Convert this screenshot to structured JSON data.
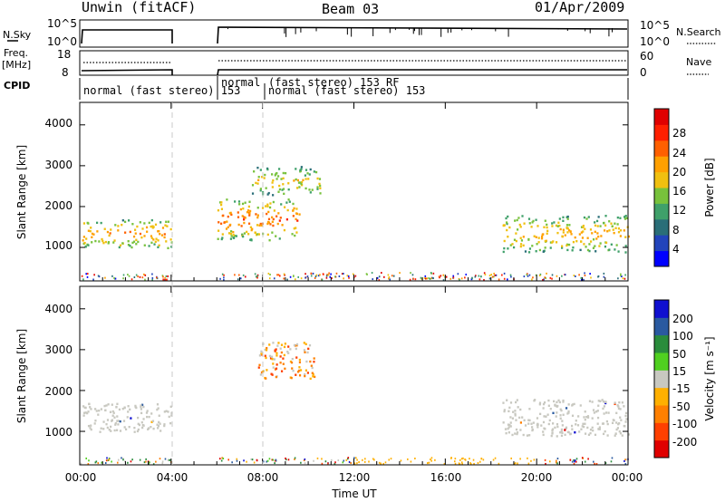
{
  "header": {
    "station": "Unwin (fitACF)",
    "beam": "Beam 03",
    "date": "01/Apr/2009"
  },
  "panels": {
    "nsky": {
      "left_label": "N.Sky",
      "right_label": "N.Search",
      "left_ticks": [
        "10^5",
        "10^0"
      ],
      "right_ticks": [
        "10^5",
        "10^0"
      ]
    },
    "freq": {
      "left_label_top": "Freq.",
      "left_label_bottom": "[MHz]",
      "right_label": "Nave",
      "left_ticks": [
        "18",
        "8"
      ],
      "right_ticks": [
        "60",
        "0"
      ]
    },
    "cpid": {
      "label": "CPID",
      "segments": [
        "normal (fast stereo) 153",
        "normal",
        "(fast stereo)  153 RF",
        "normal (fast stereo) 153"
      ]
    }
  },
  "colors": {
    "power": [
      "#0000ff",
      "#2244bb",
      "#2a6e78",
      "#3fa06a",
      "#78c23c",
      "#f0c010",
      "#ffa000",
      "#ff6000",
      "#ff2000",
      "#e00000"
    ],
    "velocity": [
      "#e00000",
      "#ff4000",
      "#ff8000",
      "#ffb000",
      "#c8c8c0",
      "#50d020",
      "#2a8c3c",
      "#2a5aa0",
      "#1010d0"
    ],
    "scatter_gray": "#c8c8c0"
  },
  "chart_data": [
    {
      "type": "heatmap",
      "name": "Power",
      "ylabel": "Slant Range [km]",
      "yticks": [
        "1000",
        "2000",
        "3000",
        "4000"
      ],
      "ylim": [
        180,
        4550
      ],
      "colorbar": {
        "label": "Power [dB]",
        "ticks": [
          "4",
          "8",
          "12",
          "16",
          "20",
          "24",
          "28"
        ],
        "range": [
          0,
          30
        ]
      },
      "bands": [
        {
          "t0": 0.1,
          "t1": 4.0,
          "r0": 1000,
          "r1": 1700,
          "level": 22
        },
        {
          "t0": 6.0,
          "t1": 9.6,
          "r0": 1200,
          "r1": 2200,
          "level": 24
        },
        {
          "t0": 7.5,
          "t1": 10.5,
          "r0": 2300,
          "r1": 3000,
          "level": 18
        },
        {
          "t0": 18.5,
          "t1": 24.0,
          "r0": 900,
          "r1": 1800,
          "level": 20
        }
      ]
    },
    {
      "type": "heatmap",
      "name": "Velocity",
      "ylabel": "Slant Range [km]",
      "yticks": [
        "1000",
        "2000",
        "3000",
        "4000"
      ],
      "ylim": [
        180,
        4550
      ],
      "xlabel": "Time UT",
      "xticks": [
        "00:00",
        "04:00",
        "08:00",
        "12:00",
        "16:00",
        "20:00",
        "00:00"
      ],
      "xlim": [
        0,
        24
      ],
      "colorbar": {
        "label": "Velocity [m s⁻¹]",
        "ticks": [
          "200",
          "100",
          "50",
          "15",
          "-15",
          "-50",
          "-100",
          "-200"
        ],
        "range": [
          -250,
          250
        ]
      },
      "bands": [
        {
          "t0": 0.1,
          "t1": 4.0,
          "r0": 1000,
          "r1": 1700,
          "velocity": 0
        },
        {
          "t0": 7.8,
          "t1": 10.3,
          "r0": 2300,
          "r1": 3200,
          "velocity": -60
        },
        {
          "t0": 18.5,
          "t1": 24.0,
          "r0": 900,
          "r1": 1800,
          "velocity": 0
        }
      ]
    }
  ]
}
